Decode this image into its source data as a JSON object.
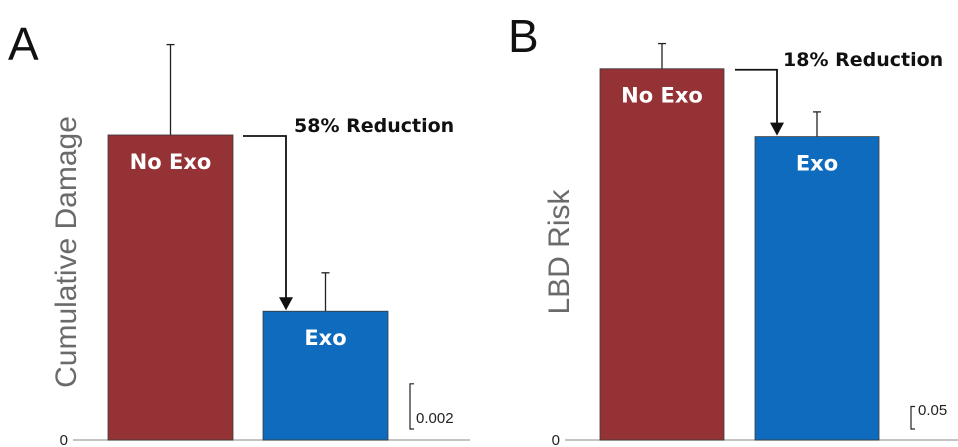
{
  "chart_data": [
    {
      "type": "bar",
      "panel": "A",
      "ylabel": "Cumulative Damage",
      "categories": [
        "No Exo",
        "Exo"
      ],
      "values": [
        0.0135,
        0.0057
      ],
      "errors": [
        0.004,
        0.0017
      ],
      "colors": [
        "#943235",
        "#0e6bbd"
      ],
      "ylim": [
        0,
        0.0185
      ],
      "y_tick": "0",
      "scale_bar": "0.002",
      "scale_bar_value": 0.002,
      "annotation": "58% Reduction"
    },
    {
      "type": "bar",
      "panel": "B",
      "ylabel": "LBD Risk",
      "categories": [
        "No Exo",
        "Exo"
      ],
      "values": [
        0.826,
        0.675
      ],
      "errors": [
        0.056,
        0.055
      ],
      "colors": [
        "#943235",
        "#0e6bbd"
      ],
      "ylim": [
        0,
        0.93
      ],
      "y_tick": "0",
      "scale_bar": "0.05",
      "scale_bar_value": 0.05,
      "annotation": "18% Reduction"
    }
  ]
}
